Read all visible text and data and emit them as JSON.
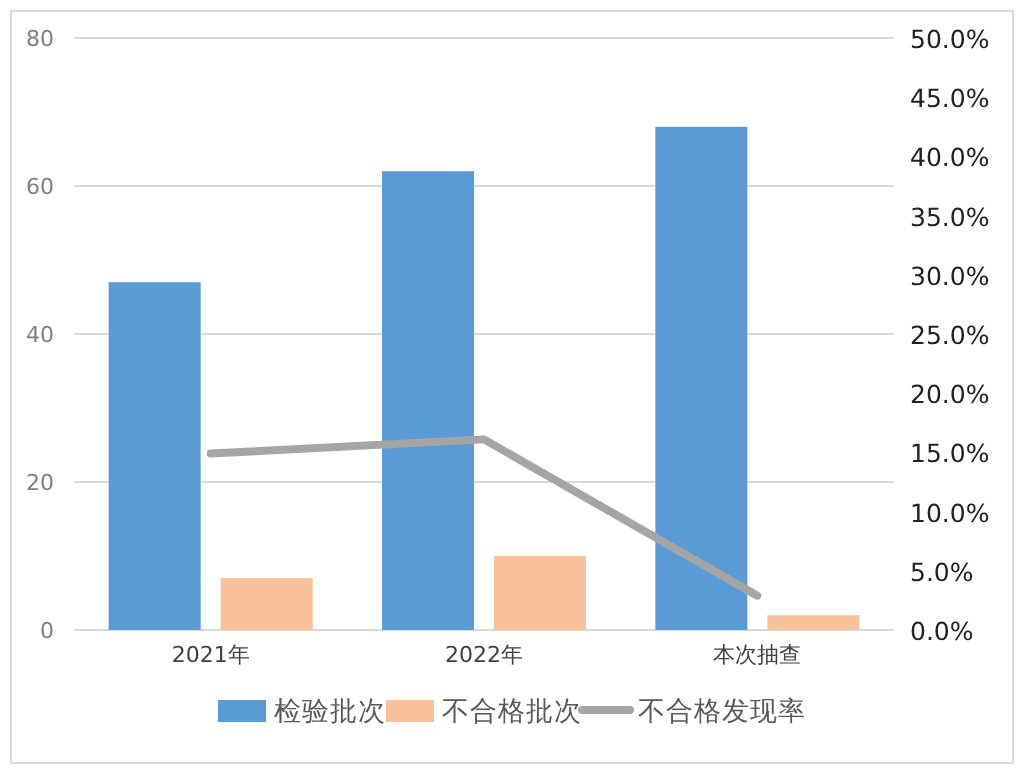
{
  "chart_data": {
    "type": "bar",
    "categories": [
      "2021年",
      "2022年",
      "本次抽查"
    ],
    "series": [
      {
        "name": "检验批次",
        "color": "#5b9bd5",
        "values": [
          47,
          62,
          68
        ]
      },
      {
        "name": "不合格批次",
        "color": "#f8c09b",
        "values": [
          7,
          10,
          2
        ]
      },
      {
        "name": "不合格发现率",
        "color": "#a5a5a5",
        "type": "line",
        "axis": "y2",
        "values": [
          14.9,
          16.1,
          2.9
        ]
      }
    ],
    "ylim": [
      0,
      80
    ],
    "yticks": [
      0,
      20,
      40,
      60,
      80
    ],
    "y2lim": [
      0,
      50
    ],
    "y2ticks": [
      {
        "value": 0,
        "label": "0.0%"
      },
      {
        "value": 5,
        "label": "5.0%"
      },
      {
        "value": 10,
        "label": "10.0%"
      },
      {
        "value": 15,
        "label": "15.0%"
      },
      {
        "value": 20,
        "label": "20.0%"
      },
      {
        "value": 25,
        "label": "25.0%"
      },
      {
        "value": 30,
        "label": "30.0%"
      },
      {
        "value": 35,
        "label": "35.0%"
      },
      {
        "value": 40,
        "label": "40.0%"
      },
      {
        "value": 45,
        "label": "45.0%"
      },
      {
        "value": 50,
        "label": "50.0%"
      }
    ],
    "grid": "y",
    "legend": "bottom",
    "marker": "none",
    "line_style": "solid"
  }
}
